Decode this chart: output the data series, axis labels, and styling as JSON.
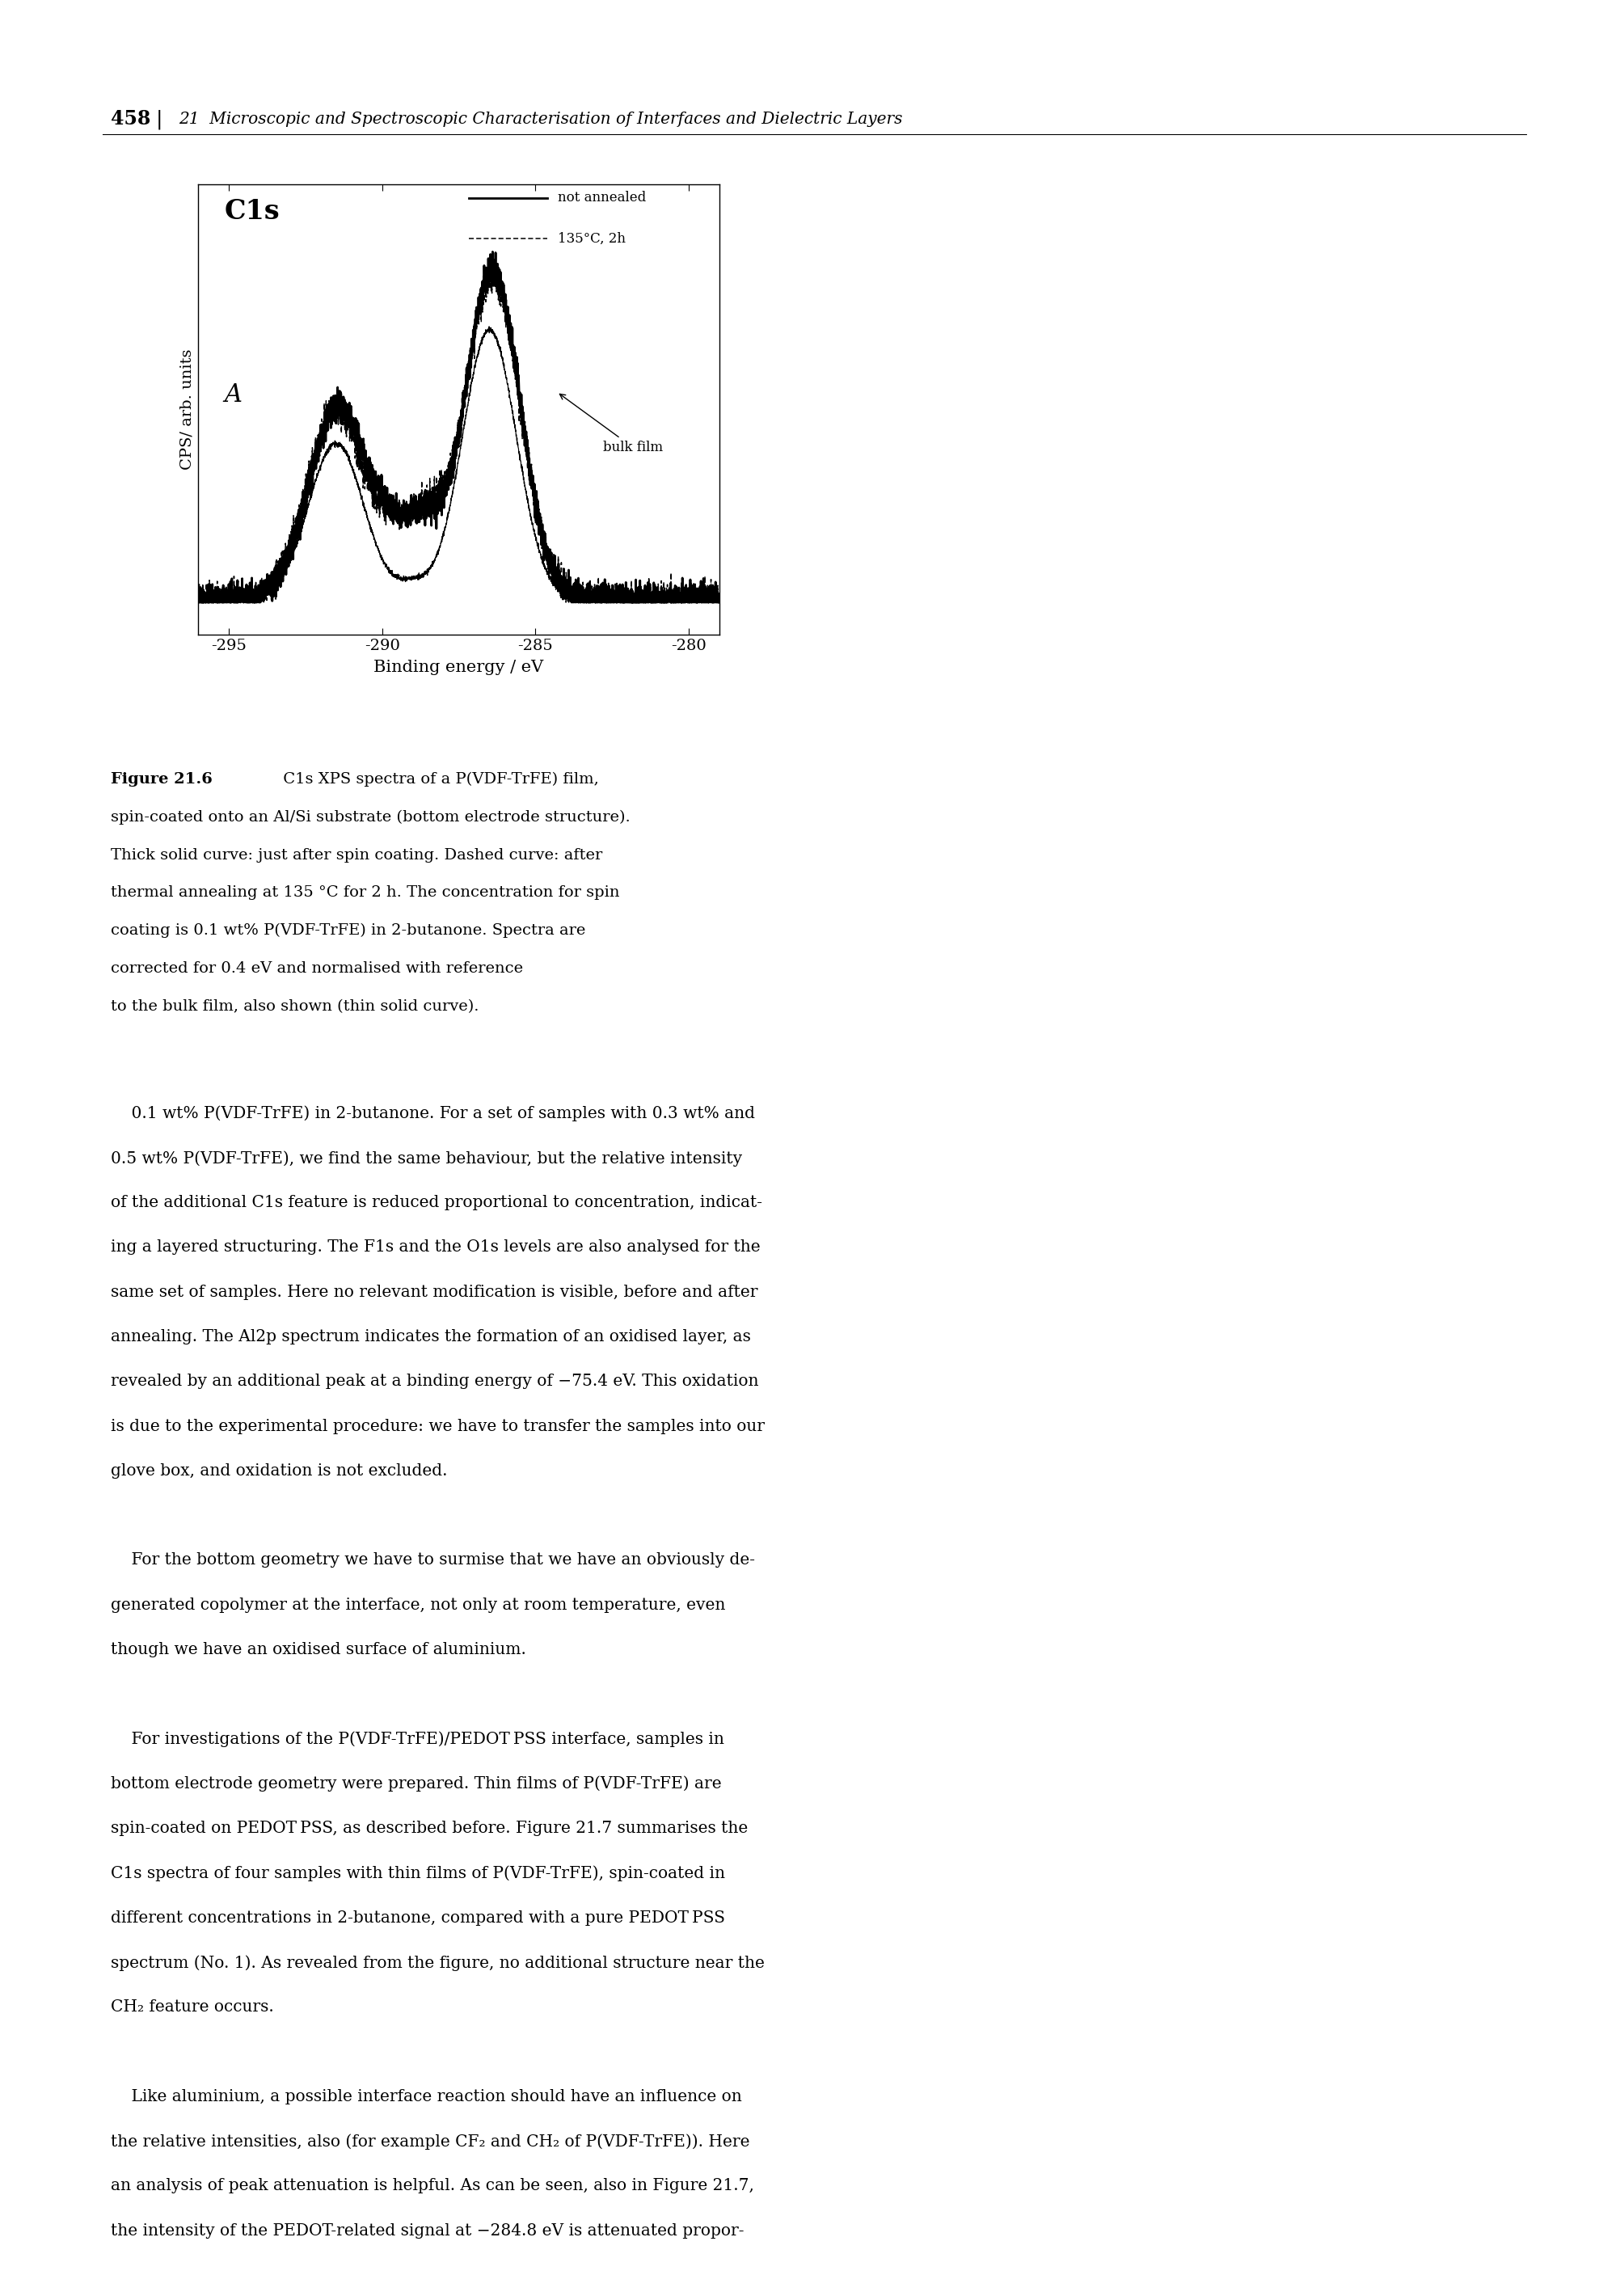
{
  "page_number": "458",
  "header_italic": "21  Microscopic and Spectroscopic Characterisation of Interfaces and Dielectric Layers",
  "figure_label": "C1s",
  "figure_sublabel": "A",
  "xlabel": "Binding energy / eV",
  "ylabel": "CPS/ arb. units",
  "xmin": -296,
  "xmax": -279,
  "xticks": [
    -295,
    -290,
    -285,
    -280
  ],
  "bulk_label": "bulk film",
  "legend_entries": [
    "not annealed",
    "135°C, 2h"
  ],
  "figure_caption_bold": "Figure 21.6",
  "figure_caption_lines": [
    " C1s XPS spectra of a P(VDF-TrFE) film,",
    "spin-coated onto an Al/Si substrate (bottom electrode structure).",
    "Thick solid curve: just after spin coating. Dashed curve: after",
    "thermal annealing at 135 °C for 2 h. The concentration for spin",
    "coating is 0.1 wt% P(VDF-TrFE) in 2-butanone. Spectra are",
    "corrected for 0.4 eV and normalised with reference",
    "to the bulk film, also shown (thin solid curve)."
  ],
  "body_lines": [
    "0.1 wt% P(VDF-TrFE) in 2-butanone. For a set of samples with 0.3 wt% and",
    "0.5 wt% P(VDF-TrFE), we find the same behaviour, but the relative intensity",
    "of the additional C1s feature is reduced proportional to concentration, indicat-",
    "ing a layered structuring. The F1s and the O1s levels are also analysed for the",
    "same set of samples. Here no relevant modification is visible, before and after",
    "annealing. The Al2p spectrum indicates the formation of an oxidised layer, as",
    "revealed by an additional peak at a binding energy of −75.4 eV. This oxidation",
    "is due to the experimental procedure: we have to transfer the samples into our",
    "glove box, and oxidation is not excluded.",
    "",
    "For the bottom geometry we have to surmise that we have an obviously de-",
    "generated copolymer at the interface, not only at room temperature, even",
    "though we have an oxidised surface of aluminium.",
    "",
    "For investigations of the P(VDF-TrFE)/PEDOT PSS interface, samples in",
    "bottom electrode geometry were prepared. Thin films of P(VDF-TrFE) are",
    "spin-coated on PEDOT PSS, as described before. Figure 21.7 summarises the",
    "C1s spectra of four samples with thin films of P(VDF-TrFE), spin-coated in",
    "different concentrations in 2-butanone, compared with a pure PEDOT PSS",
    "spectrum (No. 1). As revealed from the figure, no additional structure near the",
    "CH₂ feature occurs.",
    "",
    "Like aluminium, a possible interface reaction should have an influence on",
    "the relative intensities, also (for example CF₂ and CH₂ of P(VDF-TrFE)). Here",
    "an analysis of peak attenuation is helpful. As can be seen, also in Figure 21.7,",
    "the intensity of the PEDOT-related signal at −284.8 eV is attenuated propor-"
  ],
  "body_indent_idx": [
    0,
    10,
    14,
    22
  ],
  "background_color": "#ffffff"
}
